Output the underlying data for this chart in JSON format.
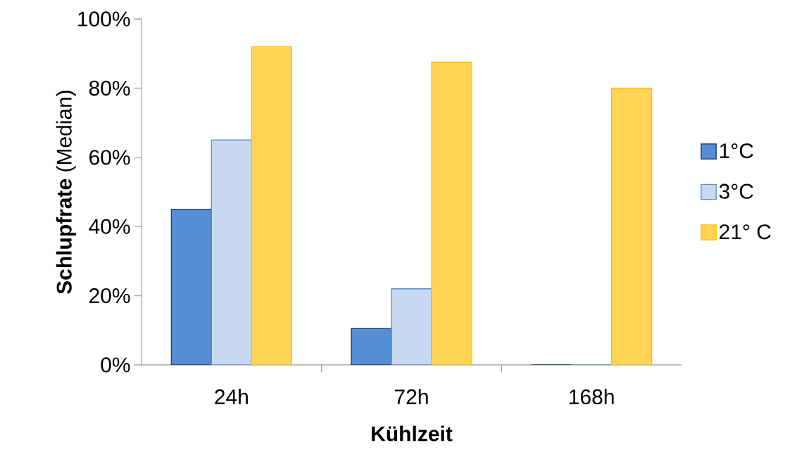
{
  "chart_data": {
    "type": "bar",
    "xlabel": "Kühlzeit",
    "ylabel": "**Schlupfrate** (Median)",
    "categories": [
      "24h",
      "72h",
      "168h"
    ],
    "series": [
      {
        "name": "1°C",
        "color": "#558ed5",
        "values": [
          45,
          10.5,
          0
        ]
      },
      {
        "name": "3°C",
        "color": "#c6d9f1",
        "values": [
          65,
          22,
          0
        ]
      },
      {
        "name": "21° C",
        "color": "#ffd455",
        "values": [
          92,
          87.5,
          80
        ]
      }
    ],
    "ylim": [
      0,
      100
    ],
    "yticks": [
      {
        "value": 0,
        "label": "0%"
      },
      {
        "value": 20,
        "label": "20%"
      },
      {
        "value": 40,
        "label": "40%"
      },
      {
        "value": 60,
        "label": "60%"
      },
      {
        "value": 80,
        "label": "80%"
      },
      {
        "value": 100,
        "label": "100%"
      }
    ],
    "grid": false,
    "legend": "right"
  }
}
